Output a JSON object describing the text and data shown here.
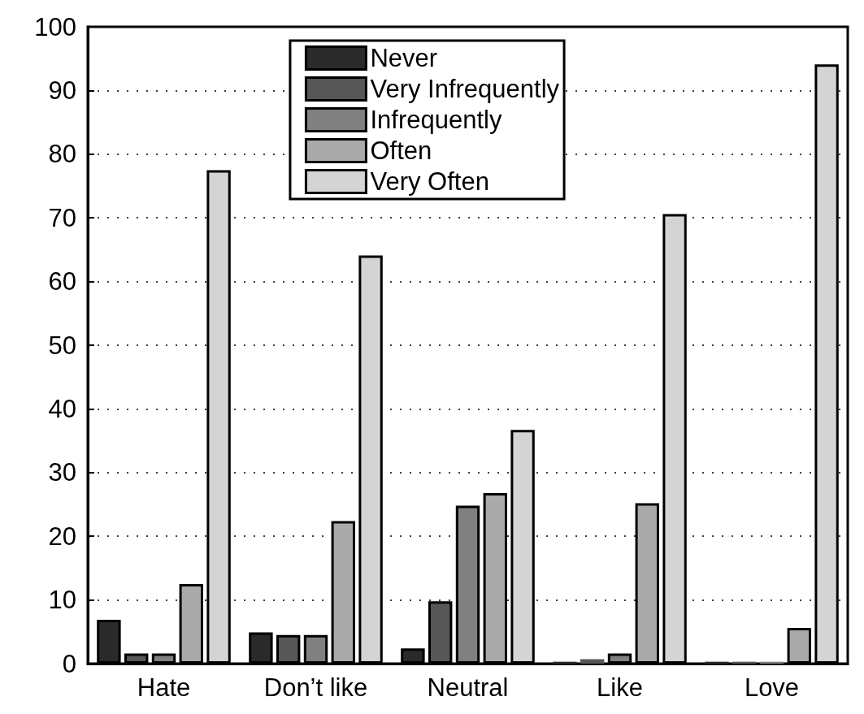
{
  "chart_data": {
    "type": "bar",
    "categories": [
      "Hate",
      "Don’t like",
      "Neutral",
      "Like",
      "Love"
    ],
    "series": [
      {
        "name": "Never",
        "color": "#2a2a2a",
        "values": [
          6.9,
          4.9,
          2.4,
          0.3,
          0.3
        ]
      },
      {
        "name": "Very Infrequently",
        "color": "#575757",
        "values": [
          1.6,
          4.5,
          9.8,
          0.7,
          0.3
        ]
      },
      {
        "name": "Infrequently",
        "color": "#808080",
        "values": [
          1.6,
          4.5,
          24.8,
          1.6,
          0.3
        ]
      },
      {
        "name": "Often",
        "color": "#aaaaaa",
        "values": [
          12.5,
          22.4,
          26.8,
          25.2,
          5.6
        ]
      },
      {
        "name": "Very Often",
        "color": "#d4d4d4",
        "values": [
          77.5,
          64.1,
          36.7,
          70.6,
          94.1
        ]
      }
    ],
    "ylim": [
      0,
      100
    ],
    "yticks": [
      0,
      10,
      20,
      30,
      40,
      50,
      60,
      70,
      80,
      90,
      100
    ],
    "grid": "y",
    "legend": "top"
  }
}
